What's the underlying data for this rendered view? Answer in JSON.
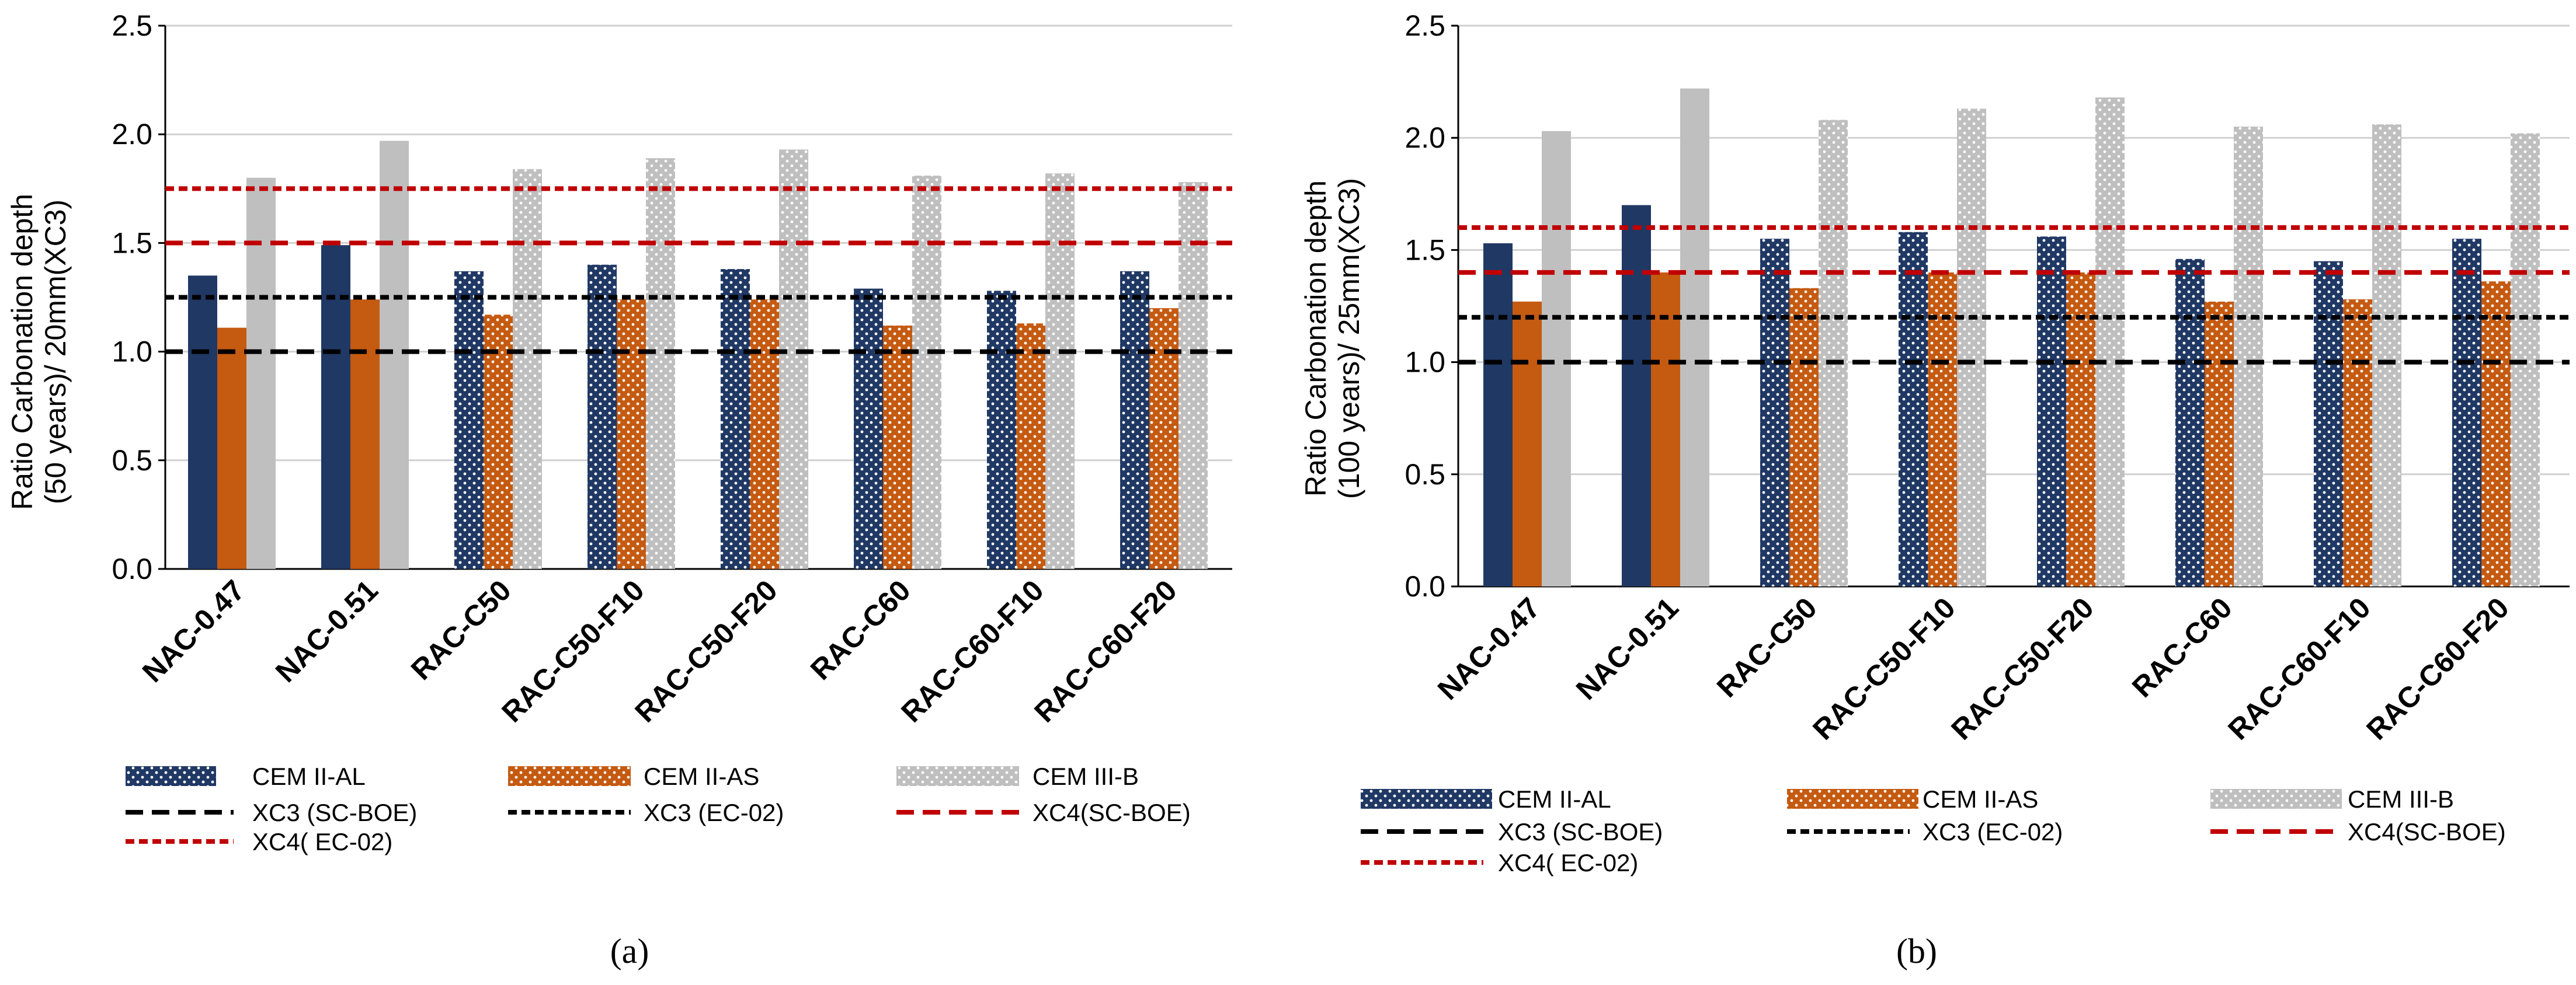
{
  "colors": {
    "cem_ii_al": "#203864",
    "cem_ii_as": "#C55A11",
    "cem_iii_b": "#BFBFBF",
    "dark_line": "#000000",
    "red_line": "#C00000",
    "grid": "#D0D0D0"
  },
  "chart_data": [
    {
      "type": "bar",
      "caption": "(a)",
      "ylabel_line1": "Ratio Carbonation depth",
      "ylabel_line2": "(50 years)/ 20mm(XC3)",
      "ylim": [
        0,
        2.5
      ],
      "yticks": [
        "0.0",
        "0.5",
        "1.0",
        "1.5",
        "2.0",
        "2.5"
      ],
      "categories": [
        "NAC-0.47",
        "NAC-0.51",
        "RAC-C50",
        "RAC-C50-F10",
        "RAC-C50-F20",
        "RAC-C60",
        "RAC-C60-F10",
        "RAC-C60-F20"
      ],
      "series": [
        {
          "name": "CEM II-AL",
          "values": [
            1.35,
            1.49,
            1.37,
            1.4,
            1.38,
            1.29,
            1.28,
            1.37
          ]
        },
        {
          "name": "CEM II-AS",
          "values": [
            1.11,
            1.24,
            1.17,
            1.24,
            1.24,
            1.12,
            1.13,
            1.2
          ]
        },
        {
          "name": "CEM III-B",
          "values": [
            1.8,
            1.97,
            1.84,
            1.89,
            1.93,
            1.81,
            1.82,
            1.78
          ]
        }
      ],
      "reference_lines": [
        {
          "name": "XC3 (SC-BOE)",
          "value": 1.0
        },
        {
          "name": "XC3 (EC-02)",
          "value": 1.25
        },
        {
          "name": "XC4( EC-02)",
          "value": 1.75
        },
        {
          "name": "XC4(SC-BOE)",
          "value": 1.5
        }
      ]
    },
    {
      "type": "bar",
      "caption": "(b)",
      "ylabel_line1": "Ratio Carbonation depth",
      "ylabel_line2": "(100 years)/ 25mm(XC3)",
      "ylim": [
        0,
        2.5
      ],
      "yticks": [
        "0.0",
        "0.5",
        "1.0",
        "1.5",
        "2.0",
        "2.5"
      ],
      "categories": [
        "NAC-0.47",
        "NAC-0.51",
        "RAC-C50",
        "RAC-C50-F10",
        "RAC-C50-F20",
        "RAC-C60",
        "RAC-C60-F10",
        "RAC-C60-F20"
      ],
      "series": [
        {
          "name": "CEM II-AL",
          "values": [
            1.53,
            1.7,
            1.55,
            1.58,
            1.56,
            1.46,
            1.45,
            1.55
          ]
        },
        {
          "name": "CEM II-AS",
          "values": [
            1.27,
            1.4,
            1.33,
            1.4,
            1.4,
            1.27,
            1.28,
            1.36
          ]
        },
        {
          "name": "CEM III-B",
          "values": [
            2.03,
            2.22,
            2.08,
            2.13,
            2.18,
            2.05,
            2.06,
            2.02
          ]
        }
      ],
      "reference_lines": [
        {
          "name": "XC3 (SC-BOE)",
          "value": 1.0
        },
        {
          "name": "XC3 (EC-02)",
          "value": 1.2
        },
        {
          "name": "XC4( EC-02)",
          "value": 1.6
        },
        {
          "name": "XC4(SC-BOE)",
          "value": 1.4
        }
      ]
    }
  ]
}
